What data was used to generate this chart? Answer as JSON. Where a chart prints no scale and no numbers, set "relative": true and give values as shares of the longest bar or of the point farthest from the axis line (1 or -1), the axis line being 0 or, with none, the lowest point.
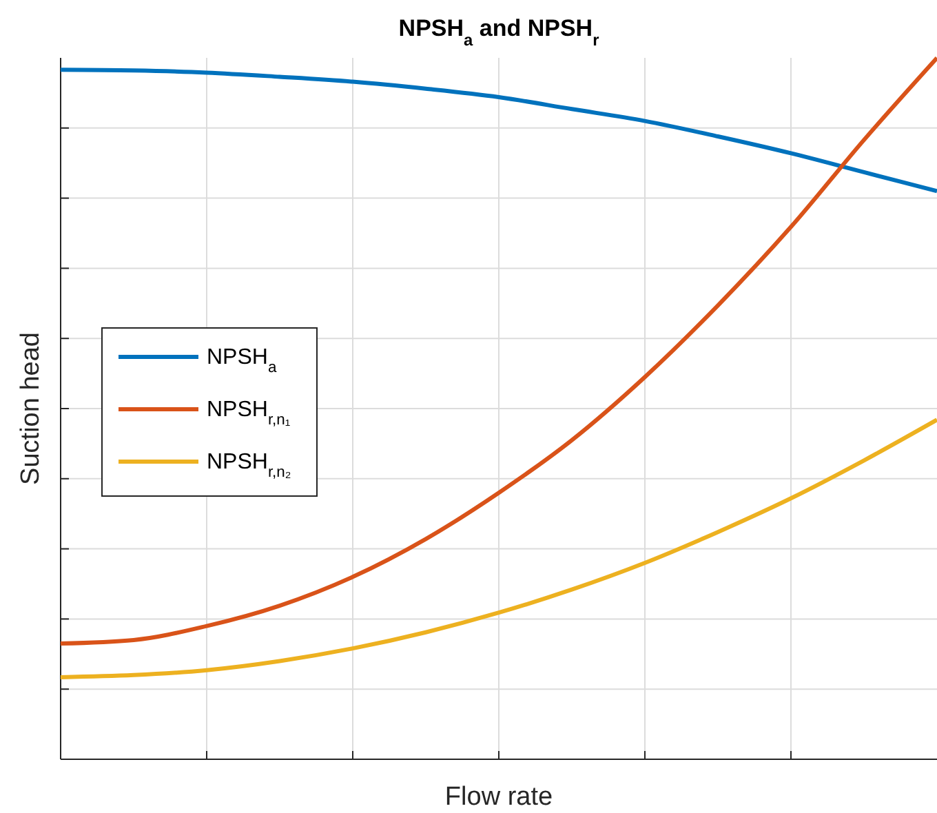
{
  "chart_data": {
    "type": "line",
    "title": "NPSH$_{a}$ and NPSH$_{r}$",
    "xlabel": "Flow rate",
    "ylabel": "Suction head",
    "relative": true,
    "grid": true,
    "legend": "left",
    "line_style": "solid",
    "categories": [
      null,
      null,
      null,
      null,
      null,
      null,
      null,
      null,
      null,
      null,
      null,
      null,
      null
    ],
    "series": [
      {
        "name": "NPSH$_{a}$",
        "color": "#0072bd",
        "values": [
          0.983,
          0.982,
          0.979,
          0.973,
          0.966,
          0.956,
          0.944,
          0.927,
          0.91,
          0.888,
          0.864,
          0.837,
          0.81
        ]
      },
      {
        "name": "NPSH$_{r,n₁}$",
        "color": "#d95319",
        "values": [
          0.165,
          0.17,
          0.19,
          0.219,
          0.26,
          0.314,
          0.38,
          0.455,
          0.545,
          0.647,
          0.759,
          0.883,
          1
        ]
      },
      {
        "name": "NPSH$_{r,n₂}$",
        "color": "#edb120",
        "values": [
          0.117,
          0.12,
          0.127,
          0.14,
          0.158,
          0.181,
          0.209,
          0.242,
          0.28,
          0.324,
          0.372,
          0.426,
          0.484
        ]
      }
    ]
  }
}
